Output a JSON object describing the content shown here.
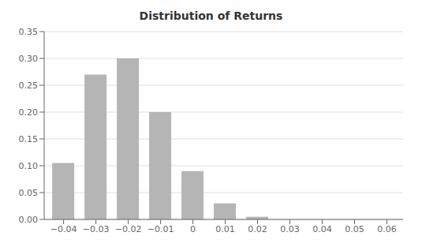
{
  "chart_data": {
    "type": "bar",
    "title": "Distribution of Returns",
    "x": [
      -0.04,
      -0.03,
      -0.02,
      -0.01,
      0,
      0.01,
      0.02
    ],
    "values": [
      0.105,
      0.27,
      0.3,
      0.2,
      0.09,
      0.03,
      0.005
    ],
    "color": "#b5b5b5",
    "xlim": [
      -0.046,
      0.065
    ],
    "xticks": [
      {
        "value": -0.04,
        "label": "−0.04"
      },
      {
        "value": -0.03,
        "label": "−0.03"
      },
      {
        "value": -0.02,
        "label": "−0.02"
      },
      {
        "value": -0.01,
        "label": "−0.01"
      },
      0,
      0.01,
      0.02,
      0.03,
      0.04,
      0.05,
      0.06
    ],
    "ylim": [
      0,
      0.35
    ],
    "yticks": [
      {
        "value": 0,
        "label": "0.00"
      },
      0.05,
      {
        "value": 0.1,
        "label": "0.10"
      },
      0.15,
      {
        "value": 0.2,
        "label": "0.20"
      },
      0.25,
      {
        "value": 0.3,
        "label": "0.30"
      },
      0.35
    ],
    "grid": true
  }
}
